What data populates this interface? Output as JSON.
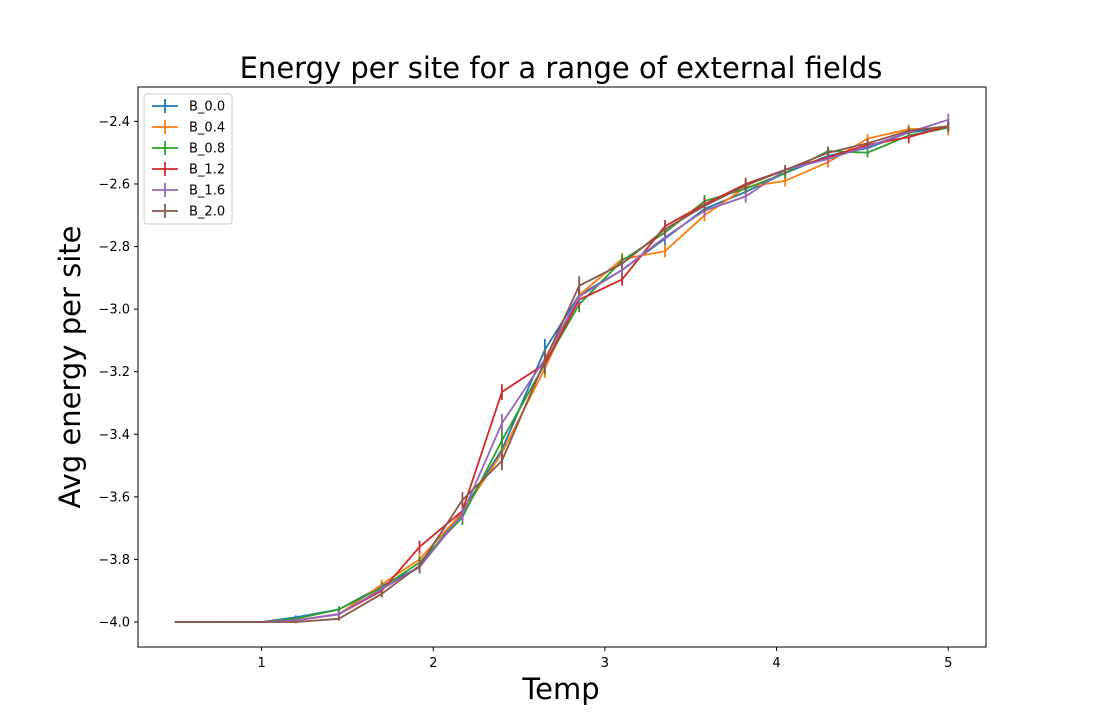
{
  "chart_data": {
    "type": "line",
    "title": "Energy per site for a range of external fields",
    "xlabel": "Temp",
    "ylabel": "Avg energy per site",
    "xlim": [
      0.28,
      5.22
    ],
    "ylim": [
      -4.08,
      -2.29
    ],
    "xticks": [
      1,
      2,
      3,
      4,
      5
    ],
    "xtick_labels": [
      "1",
      "2",
      "3",
      "4",
      "5"
    ],
    "yticks": [
      -4.0,
      -3.8,
      -3.6,
      -3.4,
      -3.2,
      -3.0,
      -2.8,
      -2.6,
      -2.4
    ],
    "ytick_labels": [
      "−4.0",
      "−3.8",
      "−3.6",
      "−3.4",
      "−3.2",
      "−3.0",
      "−2.8",
      "−2.6",
      "−2.4"
    ],
    "grid": false,
    "legend_position": "top-left",
    "x": [
      0.5,
      0.75,
      1.0,
      1.2,
      1.45,
      1.7,
      1.92,
      2.17,
      2.4,
      2.65,
      2.85,
      3.1,
      3.35,
      3.58,
      3.82,
      4.05,
      4.3,
      4.53,
      4.77,
      5.0
    ],
    "series": [
      {
        "name": "B_0.0",
        "color": "#1f77b4",
        "values": [
          -4.0,
          -4.0,
          -4.0,
          -3.985,
          -3.96,
          -3.885,
          -3.825,
          -3.645,
          -3.45,
          -3.13,
          -2.955,
          -2.875,
          -2.775,
          -2.68,
          -2.625,
          -2.565,
          -2.51,
          -2.485,
          -2.435,
          -2.42
        ],
        "errors": [
          0.003,
          0.003,
          0.003,
          0.006,
          0.01,
          0.015,
          0.02,
          0.025,
          0.04,
          0.035,
          0.03,
          0.025,
          0.02,
          0.02,
          0.02,
          0.015,
          0.015,
          0.015,
          0.015,
          0.015
        ]
      },
      {
        "name": "B_0.4",
        "color": "#ff7f0e",
        "values": [
          -4.0,
          -4.0,
          -4.0,
          -3.995,
          -3.975,
          -3.88,
          -3.8,
          -3.65,
          -3.46,
          -3.19,
          -2.955,
          -2.84,
          -2.815,
          -2.7,
          -2.61,
          -2.59,
          -2.53,
          -2.455,
          -2.425,
          -2.42
        ],
        "errors": [
          0.003,
          0.003,
          0.003,
          0.006,
          0.01,
          0.015,
          0.02,
          0.025,
          0.035,
          0.03,
          0.025,
          0.02,
          0.02,
          0.02,
          0.02,
          0.018,
          0.018,
          0.015,
          0.015,
          0.025
        ]
      },
      {
        "name": "B_0.8",
        "color": "#2ca02c",
        "values": [
          -4.0,
          -4.0,
          -4.0,
          -3.99,
          -3.96,
          -3.89,
          -3.81,
          -3.665,
          -3.42,
          -3.175,
          -2.985,
          -2.845,
          -2.755,
          -2.655,
          -2.615,
          -2.565,
          -2.495,
          -2.5,
          -2.445,
          -2.42
        ],
        "errors": [
          0.003,
          0.003,
          0.003,
          0.006,
          0.01,
          0.015,
          0.02,
          0.025,
          0.04,
          0.035,
          0.025,
          0.02,
          0.02,
          0.02,
          0.02,
          0.015,
          0.015,
          0.015,
          0.015,
          0.015
        ]
      },
      {
        "name": "B_1.2",
        "color": "#d62728",
        "values": [
          -4.0,
          -4.0,
          -4.0,
          -3.995,
          -3.975,
          -3.9,
          -3.76,
          -3.645,
          -3.265,
          -3.175,
          -2.97,
          -2.905,
          -2.735,
          -2.665,
          -2.6,
          -2.555,
          -2.515,
          -2.475,
          -2.45,
          -2.415
        ],
        "errors": [
          0.003,
          0.003,
          0.003,
          0.006,
          0.01,
          0.015,
          0.02,
          0.025,
          0.025,
          0.03,
          0.025,
          0.02,
          0.02,
          0.02,
          0.02,
          0.015,
          0.015,
          0.015,
          0.02,
          0.015
        ]
      },
      {
        "name": "B_1.6",
        "color": "#9467bd",
        "values": [
          -4.0,
          -4.0,
          -4.0,
          -3.995,
          -3.975,
          -3.895,
          -3.825,
          -3.655,
          -3.365,
          -3.16,
          -2.96,
          -2.875,
          -2.77,
          -2.685,
          -2.64,
          -2.555,
          -2.52,
          -2.48,
          -2.435,
          -2.395
        ],
        "errors": [
          0.003,
          0.003,
          0.003,
          0.006,
          0.01,
          0.015,
          0.02,
          0.025,
          0.03,
          0.03,
          0.025,
          0.02,
          0.02,
          0.02,
          0.02,
          0.015,
          0.015,
          0.015,
          0.015,
          0.02
        ]
      },
      {
        "name": "B_2.0",
        "color": "#8c564b",
        "values": [
          -4.0,
          -4.0,
          -4.0,
          -4.0,
          -3.99,
          -3.91,
          -3.82,
          -3.61,
          -3.485,
          -3.165,
          -2.925,
          -2.855,
          -2.745,
          -2.67,
          -2.605,
          -2.555,
          -2.5,
          -2.47,
          -2.43,
          -2.415
        ],
        "errors": [
          0.003,
          0.003,
          0.003,
          0.004,
          0.006,
          0.012,
          0.02,
          0.025,
          0.03,
          0.035,
          0.03,
          0.02,
          0.02,
          0.02,
          0.02,
          0.015,
          0.015,
          0.015,
          0.015,
          0.015
        ]
      }
    ]
  }
}
